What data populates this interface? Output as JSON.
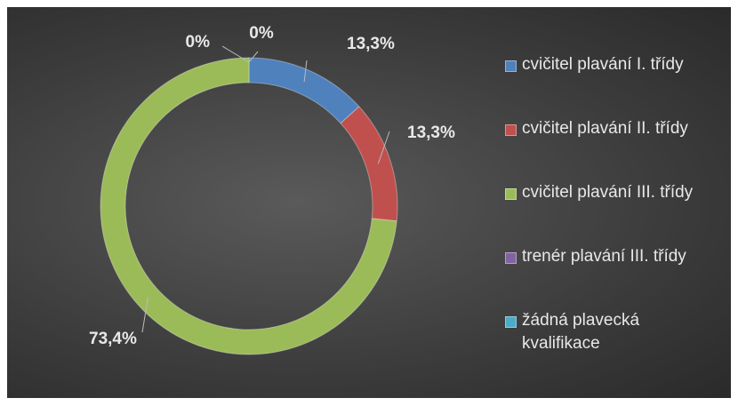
{
  "chart_data": {
    "type": "donut",
    "categories": [
      "cvičitel plavání I. třídy",
      "cvičitel plavání II. třídy",
      "cvičitel plavání III. třídy",
      "trenér plavání III. třídy",
      "žádná plavecká kvalifikace"
    ],
    "values": [
      13.3,
      13.3,
      73.4,
      0,
      0
    ],
    "value_labels": [
      "13,3%",
      "13,3%",
      "73,4%",
      "0%",
      "0%"
    ],
    "colors": [
      "#4f81bd",
      "#c0504d",
      "#9bbb59",
      "#8064a2",
      "#4bacc6"
    ]
  }
}
